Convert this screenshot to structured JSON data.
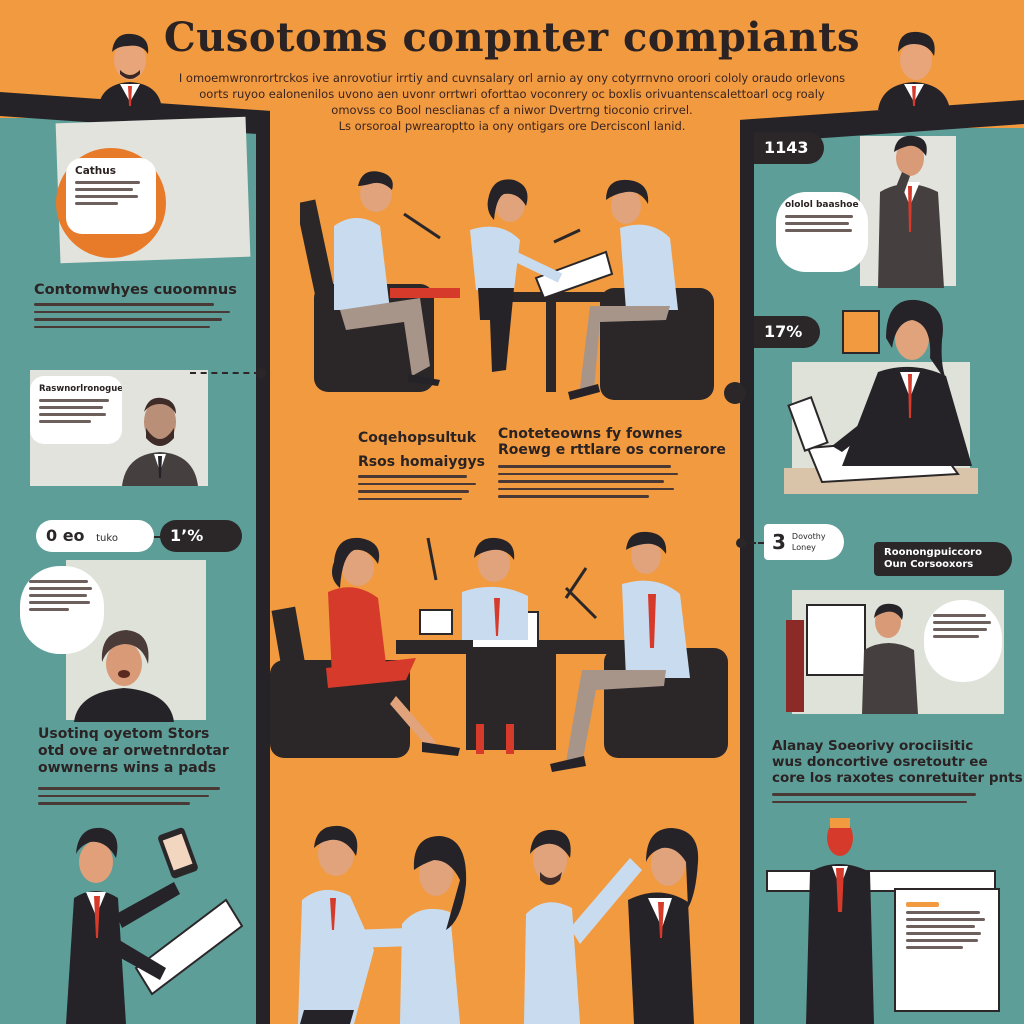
{
  "header": {
    "title": "Cusotoms conpnter compiants",
    "subtitle_lines": [
      "I omoemwronrortrckos ive anrovotiur irrtiy and cuvnsalary orl arnio ay ony cotyrrnvno oroori cololy oraudo orlevons",
      "oorts ruyoo ealonenilos uvono aen uvonr orrtwri oforttao voconrery oc boxlis orivuantenscalettoarl ocg roaly",
      "omovss co Bool nesclianas cf a niwor Dvertrng tioconio crirvel.",
      "Ls orsoroal pwrearoptto ia ony ontigars ore Dercisconl lanid."
    ]
  },
  "left_column": {
    "callout_top": {
      "title": "Cathus"
    },
    "section1_heading": "Contomwhyes cuoomnus",
    "bubble_mid": {
      "title": "Raswnorlronoguet"
    },
    "stats": [
      {
        "value": "0 eo",
        "suffix": "tuko"
      },
      {
        "value": "1’%"
      }
    ],
    "section2_heading_lines": [
      "Usotinq oyetom Stors",
      "otd ove ar orwetnrdotar",
      "owwnerns wins a pads"
    ]
  },
  "center_column": {
    "heading_left_lines": [
      "Coqehopsultuk",
      "Rsos homaiygys"
    ],
    "heading_right_lines": [
      "Cnoteteowns fy fownes",
      "Roewg e rttlare os cornerore"
    ]
  },
  "right_column": {
    "number_top": "1143",
    "bubble_top": {
      "title": "ololol baashoe"
    },
    "stat_mid": "17%",
    "stat_step": {
      "value": "3",
      "label_lines": [
        "Dovothy",
        "Loney"
      ]
    },
    "tag_right_lines": [
      "Roonongpuiccoro",
      "Oun Corsooxors"
    ],
    "section_heading_lines": [
      "Alanay Soeorivy orociisitic",
      "wus doncortive osretoutr ee",
      "core los raxotes conretuiter pnts"
    ]
  },
  "colors": {
    "orange_background": "#f29a3f",
    "teal_panel": "#5e9e98",
    "charcoal": "#262328",
    "shirt_blue": "#c9dcef",
    "tie_red": "#d63a2a"
  }
}
